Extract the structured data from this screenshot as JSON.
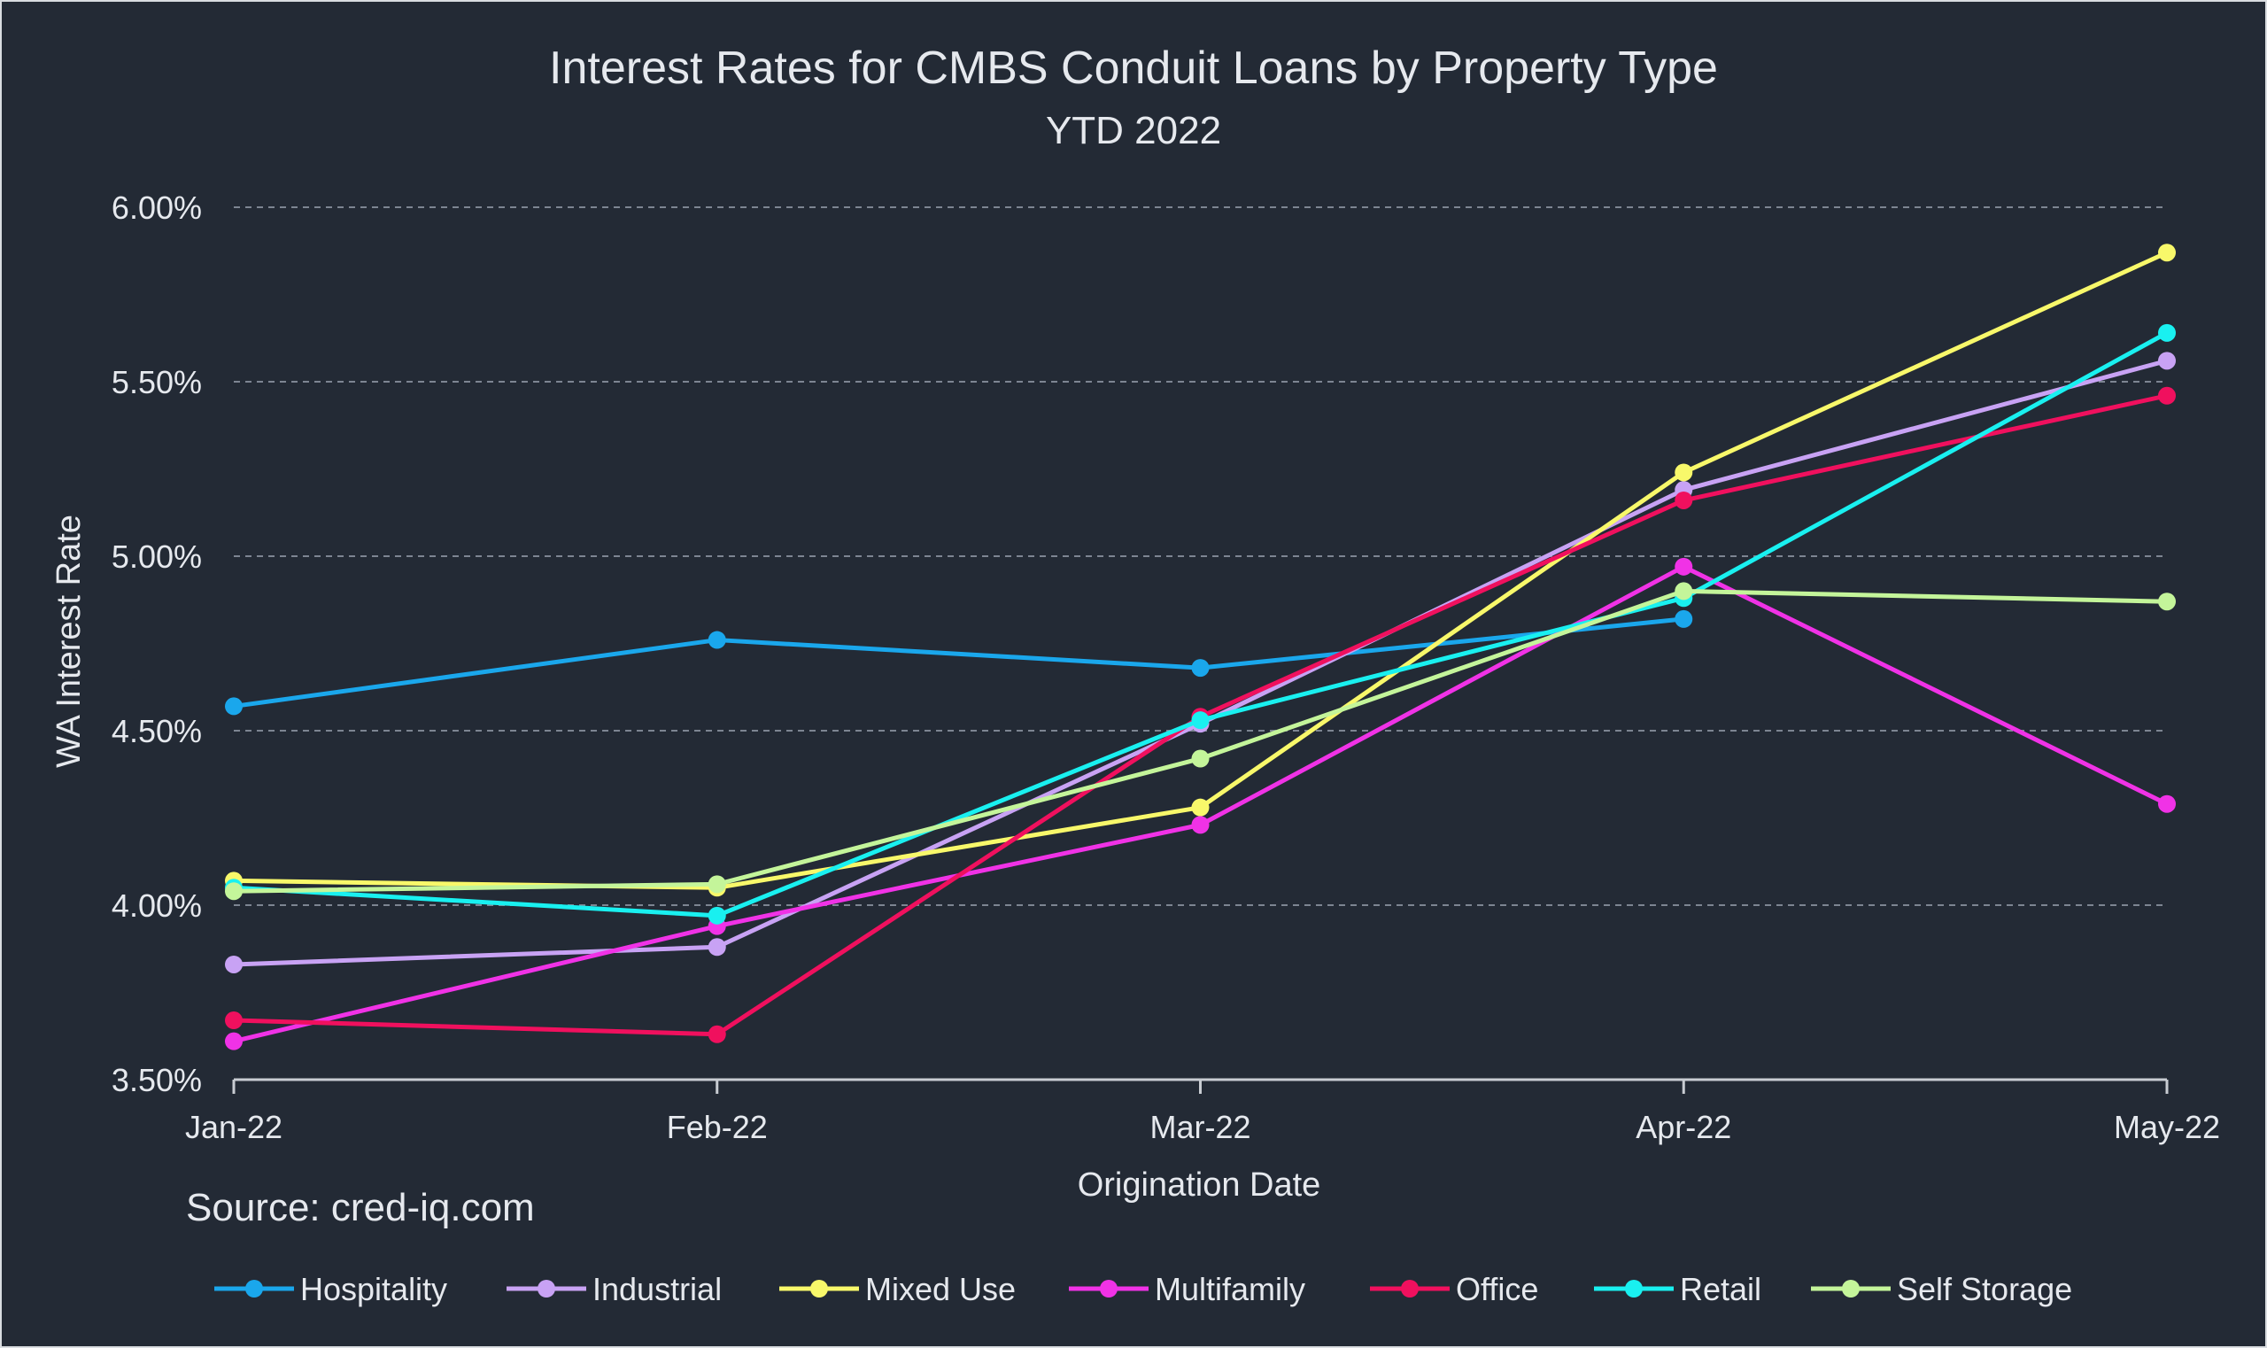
{
  "chart_data": {
    "type": "line",
    "title": "Interest Rates for CMBS Conduit Loans by Property Type",
    "subtitle": "YTD 2022",
    "xlabel": "Origination Date",
    "ylabel": "WA Interest Rate",
    "source": "Source: cred-iq.com",
    "categories": [
      "Jan-22",
      "Feb-22",
      "Mar-22",
      "Apr-22",
      "May-22"
    ],
    "ylim": [
      3.5,
      6.0
    ],
    "yticks": [
      "3.50%",
      "4.00%",
      "4.50%",
      "5.00%",
      "5.50%",
      "6.00%"
    ],
    "grid": true,
    "legend_position": "bottom",
    "series": [
      {
        "name": "Hospitality",
        "color": "#1aa7ec",
        "values": [
          4.57,
          4.76,
          4.68,
          4.82,
          null
        ]
      },
      {
        "name": "Industrial",
        "color": "#c8a2f4",
        "values": [
          3.83,
          3.88,
          4.52,
          5.19,
          5.56
        ]
      },
      {
        "name": "Mixed Use",
        "color": "#f8f86a",
        "values": [
          4.07,
          4.05,
          4.28,
          5.24,
          5.87
        ]
      },
      {
        "name": "Multifamily",
        "color": "#f032e6",
        "values": [
          3.61,
          3.94,
          4.23,
          4.97,
          4.29
        ]
      },
      {
        "name": "Office",
        "color": "#f0105e",
        "values": [
          3.67,
          3.63,
          4.54,
          5.16,
          5.46
        ]
      },
      {
        "name": "Retail",
        "color": "#19f0f0",
        "values": [
          4.05,
          3.97,
          4.53,
          4.88,
          5.64
        ]
      },
      {
        "name": "Self Storage",
        "color": "#c4f59a",
        "values": [
          4.04,
          4.06,
          4.42,
          4.9,
          4.87
        ]
      }
    ]
  }
}
